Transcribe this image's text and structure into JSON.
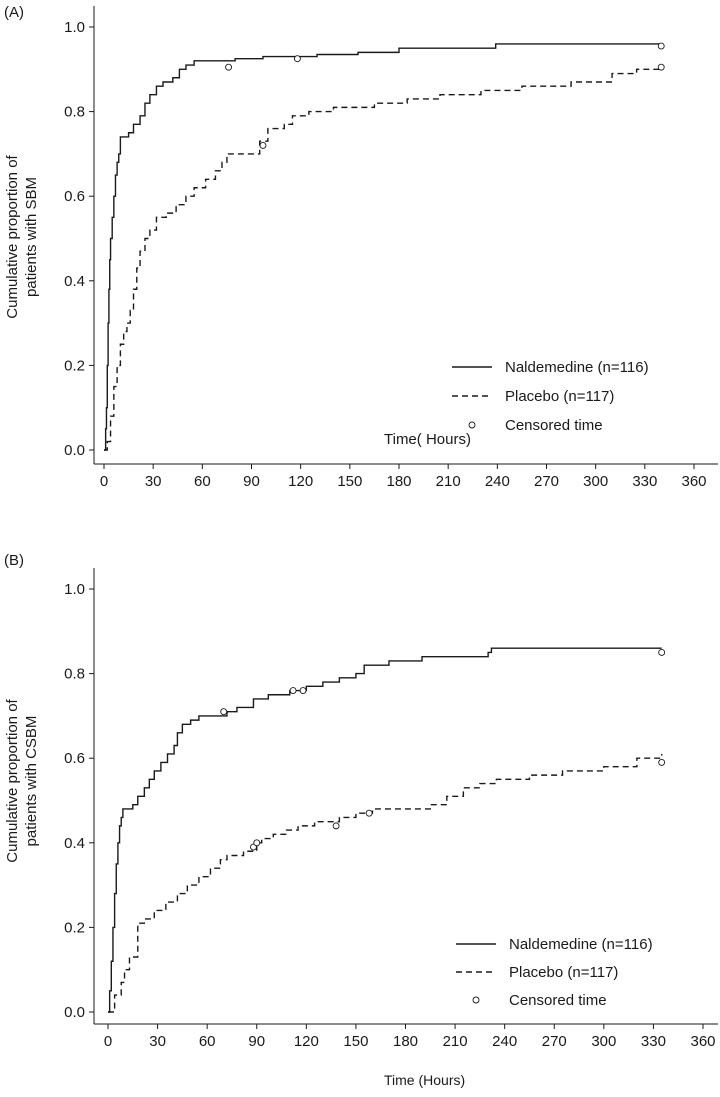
{
  "chart_data": [
    {
      "type": "line",
      "panel_label": "(A)",
      "ylabel_lines": [
        "Cumulative proportion of",
        "patients with SBM"
      ],
      "xlabel": "Time( Hours)",
      "ylim": [
        0,
        1.0
      ],
      "xlim": [
        0,
        360
      ],
      "y_ticks": [
        "0.0",
        "0.2",
        "0.4",
        "0.6",
        "0.8",
        "1.0"
      ],
      "x_ticks": [
        "0",
        "30",
        "60",
        "90",
        "120",
        "150",
        "180",
        "210",
        "240",
        "270",
        "300",
        "330",
        "360"
      ],
      "series": [
        {
          "name": "Naldemedine (n=116)",
          "style": "solid",
          "points": [
            [
              0,
              0
            ],
            [
              1,
              0.05
            ],
            [
              1.5,
              0.1
            ],
            [
              2,
              0.2
            ],
            [
              2.5,
              0.3
            ],
            [
              3,
              0.38
            ],
            [
              3.5,
              0.45
            ],
            [
              4,
              0.5
            ],
            [
              5,
              0.55
            ],
            [
              6,
              0.6
            ],
            [
              7,
              0.65
            ],
            [
              8,
              0.68
            ],
            [
              9,
              0.7
            ],
            [
              10,
              0.74
            ],
            [
              15,
              0.75
            ],
            [
              18,
              0.77
            ],
            [
              22,
              0.79
            ],
            [
              25,
              0.82
            ],
            [
              28,
              0.84
            ],
            [
              32,
              0.86
            ],
            [
              36,
              0.87
            ],
            [
              42,
              0.88
            ],
            [
              46,
              0.9
            ],
            [
              50,
              0.91
            ],
            [
              55,
              0.92
            ],
            [
              80,
              0.925
            ],
            [
              97,
              0.93
            ],
            [
              130,
              0.935
            ],
            [
              155,
              0.94
            ],
            [
              180,
              0.95
            ],
            [
              239,
              0.96
            ],
            [
              340,
              0.96
            ]
          ],
          "censored": [
            [
              76,
              0.905
            ],
            [
              118,
              0.925
            ],
            [
              340,
              0.955
            ]
          ]
        },
        {
          "name": "Placebo (n=117)",
          "style": "dashed",
          "points": [
            [
              0,
              0
            ],
            [
              2,
              0.02
            ],
            [
              4,
              0.08
            ],
            [
              6,
              0.15
            ],
            [
              8,
              0.2
            ],
            [
              10,
              0.25
            ],
            [
              12,
              0.28
            ],
            [
              14,
              0.3
            ],
            [
              16,
              0.33
            ],
            [
              18,
              0.38
            ],
            [
              20,
              0.43
            ],
            [
              22,
              0.47
            ],
            [
              25,
              0.5
            ],
            [
              28,
              0.52
            ],
            [
              32,
              0.55
            ],
            [
              38,
              0.56
            ],
            [
              44,
              0.58
            ],
            [
              50,
              0.6
            ],
            [
              55,
              0.62
            ],
            [
              62,
              0.64
            ],
            [
              68,
              0.66
            ],
            [
              72,
              0.68
            ],
            [
              75,
              0.7
            ],
            [
              95,
              0.73
            ],
            [
              100,
              0.76
            ],
            [
              110,
              0.77
            ],
            [
              115,
              0.79
            ],
            [
              125,
              0.8
            ],
            [
              140,
              0.81
            ],
            [
              165,
              0.82
            ],
            [
              185,
              0.83
            ],
            [
              205,
              0.84
            ],
            [
              230,
              0.85
            ],
            [
              255,
              0.86
            ],
            [
              285,
              0.87
            ],
            [
              310,
              0.89
            ],
            [
              325,
              0.9
            ],
            [
              340,
              0.91
            ]
          ],
          "censored": [
            [
              97,
              0.72
            ],
            [
              340,
              0.905
            ]
          ]
        }
      ],
      "legend": [
        {
          "label": "Naldemedine (n=116)",
          "style": "solid"
        },
        {
          "label": "Placebo (n=117)",
          "style": "dashed"
        },
        {
          "label": "Censored time",
          "style": "circle"
        }
      ]
    },
    {
      "type": "line",
      "panel_label": "(B)",
      "ylabel_lines": [
        "Cumulative proportion of",
        "patients with CSBM"
      ],
      "xlabel": "Time (Hours)",
      "ylim": [
        0,
        1.0
      ],
      "xlim": [
        0,
        360
      ],
      "y_ticks": [
        "0.0",
        "0.2",
        "0.4",
        "0.6",
        "0.8",
        "1.0"
      ],
      "x_ticks": [
        "0",
        "30",
        "60",
        "90",
        "120",
        "150",
        "180",
        "210",
        "240",
        "270",
        "300",
        "330",
        "360"
      ],
      "series": [
        {
          "name": "Naldemedine (n=116)",
          "style": "solid",
          "points": [
            [
              0,
              0
            ],
            [
              1,
              0.05
            ],
            [
              2,
              0.12
            ],
            [
              3,
              0.2
            ],
            [
              4,
              0.28
            ],
            [
              5,
              0.35
            ],
            [
              6,
              0.4
            ],
            [
              7,
              0.44
            ],
            [
              8,
              0.46
            ],
            [
              9,
              0.48
            ],
            [
              15,
              0.49
            ],
            [
              18,
              0.51
            ],
            [
              22,
              0.53
            ],
            [
              25,
              0.55
            ],
            [
              28,
              0.57
            ],
            [
              32,
              0.59
            ],
            [
              36,
              0.61
            ],
            [
              40,
              0.63
            ],
            [
              42,
              0.66
            ],
            [
              45,
              0.68
            ],
            [
              50,
              0.69
            ],
            [
              55,
              0.7
            ],
            [
              72,
              0.71
            ],
            [
              78,
              0.72
            ],
            [
              88,
              0.74
            ],
            [
              97,
              0.75
            ],
            [
              110,
              0.76
            ],
            [
              120,
              0.77
            ],
            [
              130,
              0.78
            ],
            [
              140,
              0.79
            ],
            [
              150,
              0.8
            ],
            [
              155,
              0.82
            ],
            [
              170,
              0.83
            ],
            [
              190,
              0.84
            ],
            [
              230,
              0.85
            ],
            [
              232,
              0.86
            ],
            [
              335,
              0.86
            ]
          ],
          "censored": [
            [
              70,
              0.71
            ],
            [
              112,
              0.76
            ],
            [
              118,
              0.76
            ],
            [
              335,
              0.85
            ]
          ]
        },
        {
          "name": "Placebo (n=117)",
          "style": "dashed",
          "points": [
            [
              0,
              0
            ],
            [
              4,
              0.04
            ],
            [
              8,
              0.07
            ],
            [
              10,
              0.1
            ],
            [
              13,
              0.13
            ],
            [
              18,
              0.21
            ],
            [
              22,
              0.22
            ],
            [
              28,
              0.24
            ],
            [
              35,
              0.26
            ],
            [
              42,
              0.28
            ],
            [
              48,
              0.3
            ],
            [
              55,
              0.32
            ],
            [
              62,
              0.34
            ],
            [
              68,
              0.36
            ],
            [
              72,
              0.37
            ],
            [
              82,
              0.38
            ],
            [
              90,
              0.4
            ],
            [
              93,
              0.41
            ],
            [
              100,
              0.42
            ],
            [
              108,
              0.43
            ],
            [
              115,
              0.44
            ],
            [
              125,
              0.45
            ],
            [
              140,
              0.46
            ],
            [
              150,
              0.47
            ],
            [
              160,
              0.48
            ],
            [
              195,
              0.49
            ],
            [
              205,
              0.51
            ],
            [
              215,
              0.53
            ],
            [
              225,
              0.54
            ],
            [
              235,
              0.55
            ],
            [
              255,
              0.56
            ],
            [
              275,
              0.57
            ],
            [
              300,
              0.58
            ],
            [
              320,
              0.6
            ],
            [
              335,
              0.61
            ]
          ],
          "censored": [
            [
              88,
              0.39
            ],
            [
              90,
              0.4
            ],
            [
              138,
              0.44
            ],
            [
              158,
              0.47
            ],
            [
              335,
              0.59
            ]
          ]
        }
      ],
      "legend": [
        {
          "label": "Naldemedine (n=116)",
          "style": "solid"
        },
        {
          "label": "Placebo (n=117)",
          "style": "dashed"
        },
        {
          "label": "Censored time",
          "style": "circle"
        }
      ]
    }
  ]
}
